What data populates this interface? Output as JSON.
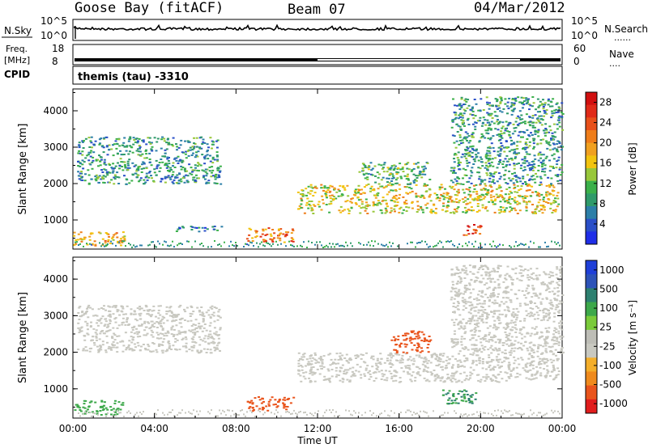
{
  "header": {
    "station": "Goose Bay (fitACF)",
    "beam": "Beam 07",
    "date": "04/Mar/2012"
  },
  "noise_panel": {
    "left_label": "N.Sky",
    "right_label": "N.Search",
    "ticks_left": [
      "10^5",
      "10^0"
    ],
    "ticks_right": [
      "10^5",
      "10^0"
    ],
    "right_legend_symbol": "......"
  },
  "freq_panel": {
    "left_label_1": "Freq.",
    "left_label_2": "[MHz]",
    "ticks_left": [
      "18",
      "8"
    ],
    "right_label": "Nave",
    "ticks_right": [
      "60",
      "0"
    ],
    "right_legend_symbol": "...."
  },
  "cpid_panel": {
    "label": "CPID",
    "text": "themis (tau) -3310"
  },
  "colors": {
    "power_scale": [
      "#1f2ee8",
      "#2a4fc8",
      "#2c7fa8",
      "#2f9a6a",
      "#3bb04a",
      "#98c73a",
      "#f2c30f",
      "#f0a020",
      "#ef7d1a",
      "#e8501a",
      "#e02a18",
      "#d10f0f"
    ],
    "velocity_scale": [
      "#e11d1d",
      "#e9541c",
      "#ef8a1d",
      "#f4ae2a",
      "#c8c8c0",
      "#bdbdb6",
      "#7acb3a",
      "#3da84a",
      "#2d8070",
      "#2d53b8",
      "#1f3fd8"
    ]
  },
  "chart_data": [
    {
      "type": "heatmap",
      "title": "",
      "xlabel": "Time UT",
      "ylabel": "Slant Range [km]",
      "x_ticks": [
        "00:00",
        "04:00",
        "08:00",
        "12:00",
        "16:00",
        "20:00",
        "00:00"
      ],
      "y_ticks": [
        "1000",
        "2000",
        "3000",
        "4000"
      ],
      "ylim": [
        200,
        4600
      ],
      "colorbar": {
        "label": "Power [dB]",
        "ticks": [
          "4",
          "8",
          "12",
          "16",
          "20",
          "24",
          "28"
        ],
        "range": [
          0,
          30
        ]
      },
      "features": [
        {
          "time_start_h": 0.2,
          "time_end_h": 7.2,
          "range_start_km": 2000,
          "range_end_km": 3300,
          "power_db": 8
        },
        {
          "time_start_h": 0.0,
          "time_end_h": 2.5,
          "range_start_km": 300,
          "range_end_km": 700,
          "power_db": 18
        },
        {
          "time_start_h": 5.0,
          "time_end_h": 7.5,
          "range_start_km": 700,
          "range_end_km": 850,
          "power_db": 6
        },
        {
          "time_start_h": 8.5,
          "time_end_h": 10.8,
          "range_start_km": 400,
          "range_end_km": 800,
          "power_db": 22
        },
        {
          "time_start_h": 11.0,
          "time_end_h": 23.8,
          "range_start_km": 1200,
          "range_end_km": 2000,
          "power_db": 16
        },
        {
          "time_start_h": 14.0,
          "time_end_h": 17.5,
          "range_start_km": 2000,
          "range_end_km": 2600,
          "power_db": 10
        },
        {
          "time_start_h": 18.5,
          "time_end_h": 24.0,
          "range_start_km": 2000,
          "range_end_km": 4400,
          "power_db": 8
        },
        {
          "time_start_h": 19.0,
          "time_end_h": 20.0,
          "range_start_km": 600,
          "range_end_km": 900,
          "power_db": 26
        }
      ]
    },
    {
      "type": "heatmap",
      "title": "",
      "xlabel": "Time UT",
      "ylabel": "Slant Range [km]",
      "x_ticks": [
        "00:00",
        "04:00",
        "08:00",
        "12:00",
        "16:00",
        "20:00",
        "00:00"
      ],
      "y_ticks": [
        "1000",
        "2000",
        "3000",
        "4000"
      ],
      "ylim": [
        200,
        4600
      ],
      "colorbar": {
        "label": "Velocity [m s⁻¹]",
        "ticks": [
          "1000",
          "500",
          "100",
          "25",
          "-25",
          "-100",
          "-500",
          "-1000"
        ]
      },
      "features": [
        {
          "time_start_h": 0.2,
          "time_end_h": 7.2,
          "range_start_km": 2000,
          "range_end_km": 3300,
          "velocity_ms": 0
        },
        {
          "time_start_h": 0.0,
          "time_end_h": 2.5,
          "range_start_km": 300,
          "range_end_km": 700,
          "velocity_ms": 80
        },
        {
          "time_start_h": 8.5,
          "time_end_h": 10.8,
          "range_start_km": 400,
          "range_end_km": 800,
          "velocity_ms": -150
        },
        {
          "time_start_h": 11.0,
          "time_end_h": 23.8,
          "range_start_km": 1200,
          "range_end_km": 2000,
          "velocity_ms": 0
        },
        {
          "time_start_h": 15.5,
          "time_end_h": 17.5,
          "range_start_km": 2000,
          "range_end_km": 2600,
          "velocity_ms": -150
        },
        {
          "time_start_h": 18.0,
          "time_end_h": 19.8,
          "range_start_km": 600,
          "range_end_km": 1000,
          "velocity_ms": 100
        },
        {
          "time_start_h": 18.5,
          "time_end_h": 24.0,
          "range_start_km": 2000,
          "range_end_km": 4400,
          "velocity_ms": 0
        }
      ]
    }
  ]
}
